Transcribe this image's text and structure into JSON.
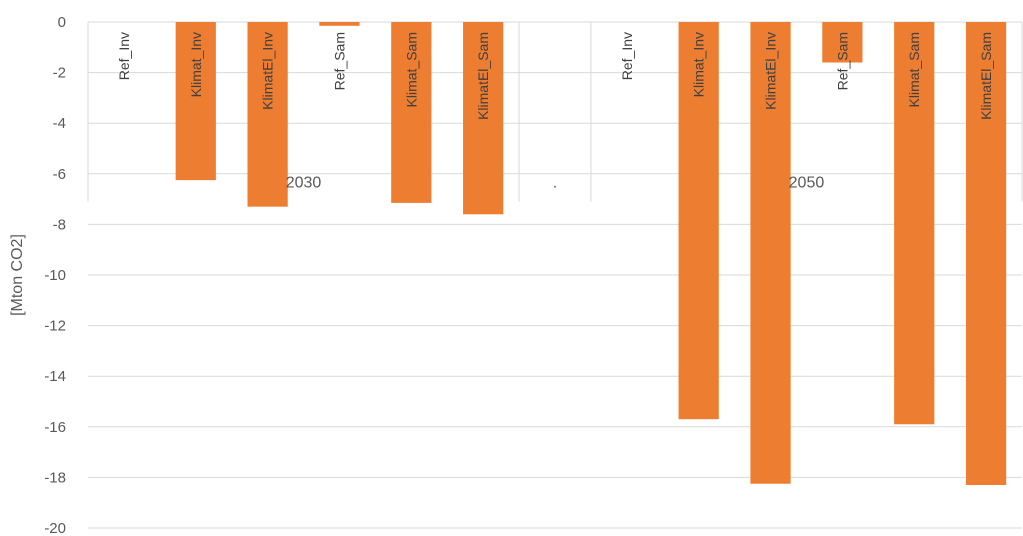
{
  "chart_data": {
    "type": "bar",
    "ylabel": "[Mton CO2]",
    "ylim": [
      -20,
      0
    ],
    "yticks": [
      0,
      -2,
      -4,
      -6,
      -8,
      -10,
      -12,
      -14,
      -16,
      -18,
      -20
    ],
    "grid": true,
    "bar_color": "#ED7D31",
    "label_color_on_bar": "#404040",
    "label_color_empty": "#404040",
    "groups": [
      {
        "label": "2030",
        "categories": [
          "Ref_Inv",
          "Klimat_Inv",
          "KlimatEl_Inv",
          "Ref_Sam",
          "Klimat_Sam",
          "KlimatEl_Sam"
        ],
        "values": [
          0,
          -6.25,
          -7.3,
          -0.15,
          -7.15,
          -7.6
        ]
      },
      {
        "label": ".",
        "categories": [
          ""
        ],
        "values": [
          0
        ]
      },
      {
        "label": "2050",
        "categories": [
          "Ref_Inv",
          "Klimat_Inv",
          "KlimatEl_Inv",
          "Ref_Sam",
          "Klimat_Sam",
          "KlimatEl_Sam"
        ],
        "values": [
          0,
          -15.7,
          -18.25,
          -1.6,
          -15.9,
          -18.3
        ]
      }
    ]
  }
}
